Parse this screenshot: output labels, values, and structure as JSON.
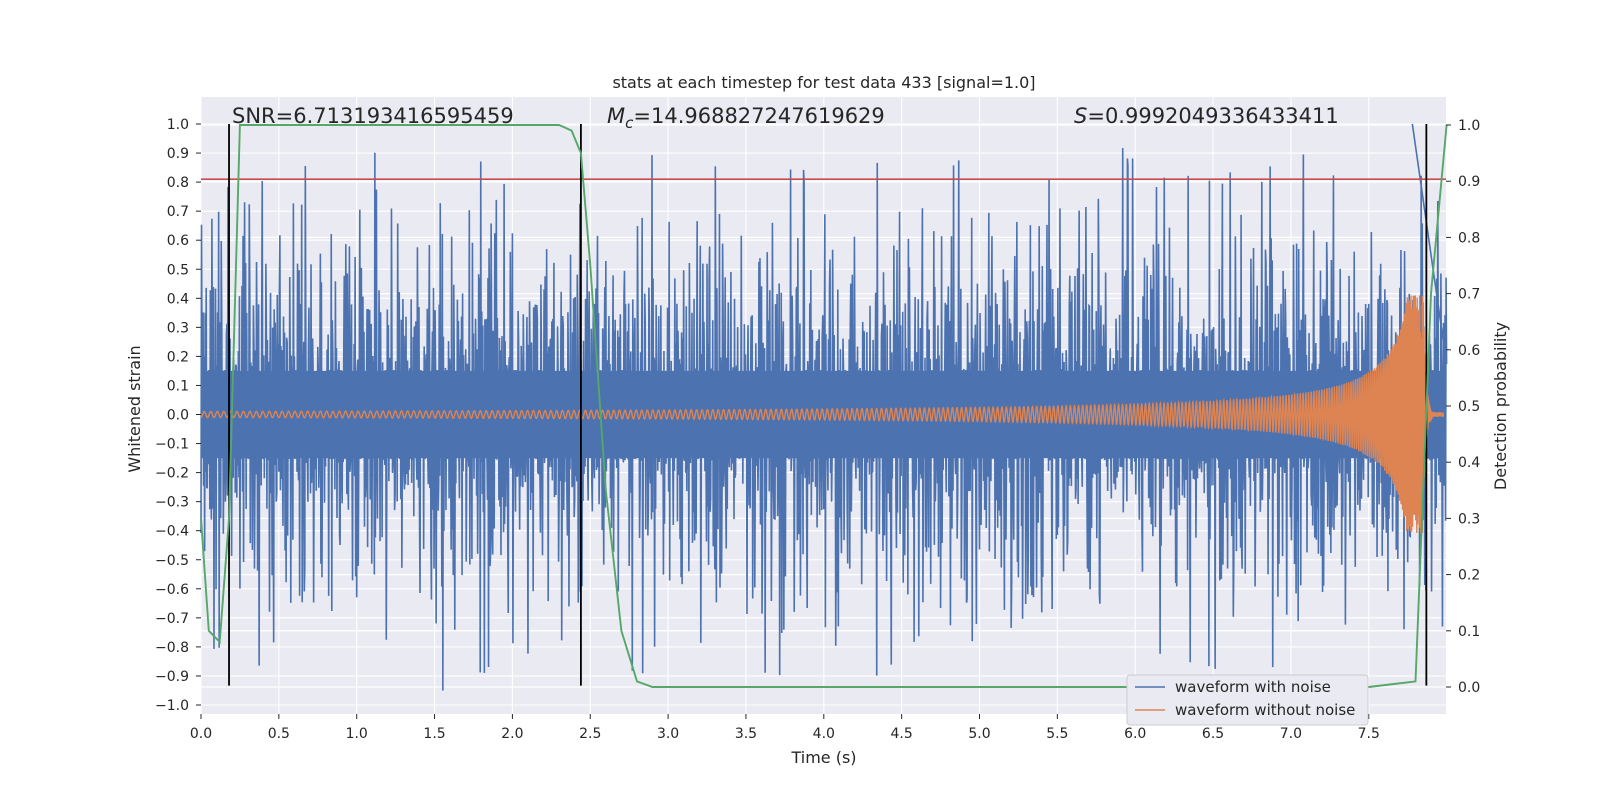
{
  "chart_data": {
    "type": "line",
    "title": "stats at each timestep for test data 433 [signal=1.0]",
    "xlabel": "Time (s)",
    "ylabel": "Whitened strain",
    "y2label": "Detection probability",
    "xlim": [
      0.0,
      8.0
    ],
    "ylim": [
      -1.05,
      1.05
    ],
    "y2lim": [
      -0.05,
      1.05
    ],
    "x_ticks": [
      0.0,
      0.5,
      1.0,
      1.5,
      2.0,
      2.5,
      3.0,
      3.5,
      4.0,
      4.5,
      5.0,
      5.5,
      6.0,
      6.5,
      7.0,
      7.5
    ],
    "x_tick_labels": [
      "0.0",
      "0.5",
      "1.0",
      "1.5",
      "2.0",
      "2.5",
      "3.0",
      "3.5",
      "4.0",
      "4.5",
      "5.0",
      "5.5",
      "6.0",
      "6.5",
      "7.0",
      "7.5"
    ],
    "y_ticks": [
      1.0,
      0.9,
      0.8,
      0.7,
      0.6,
      0.5,
      0.4,
      0.3,
      0.2,
      0.1,
      0.0,
      -0.1,
      -0.2,
      -0.3,
      -0.4,
      -0.5,
      -0.6,
      -0.7,
      -0.8,
      -0.9,
      -1.0
    ],
    "y_tick_labels": [
      "1.0",
      "0.9",
      "0.8",
      "0.7",
      "0.6",
      "0.5",
      "0.4",
      "0.3",
      "0.2",
      "0.1",
      "0.0",
      "−0.1",
      "−0.2",
      "−0.3",
      "−0.4",
      "−0.5",
      "−0.6",
      "−0.7",
      "−0.8",
      "−0.9",
      "−1.0"
    ],
    "y2_ticks": [
      1.0,
      0.9,
      0.8,
      0.7,
      0.6,
      0.5,
      0.4,
      0.3,
      0.2,
      0.1,
      0.0
    ],
    "y2_tick_labels": [
      "1.0",
      "0.9",
      "0.8",
      "0.7",
      "0.6",
      "0.5",
      "0.4",
      "0.3",
      "0.2",
      "0.1",
      "0.0"
    ],
    "annotations": [
      {
        "text": "SNR=6.713193416595459",
        "x": 0.2,
        "y": 1.02
      },
      {
        "text": "ℳc=14.968827247619629",
        "prefix": "M",
        "sub": "c",
        "rest": "=14.968827247619629",
        "x": 2.6,
        "y": 1.02
      },
      {
        "text": "S=0.9992049336433411",
        "prefix": "S",
        "rest": "=0.9992049336433411",
        "x": 5.6,
        "y": 1.02
      }
    ],
    "threshold": {
      "y": 0.81,
      "color": "#c44e52"
    },
    "vlines": [
      {
        "x": 0.18,
        "ymin": -0.93,
        "ymax": 1.0
      },
      {
        "x": 2.44,
        "ymin": -0.93,
        "ymax": 1.0
      },
      {
        "x": 7.87,
        "ymin": -0.93,
        "ymax": 1.0
      }
    ],
    "series": [
      {
        "name": "waveform with noise",
        "color": "#4c72b0",
        "noise_amplitude": 0.3,
        "peak_min": -0.95,
        "peak_max": 1.0
      },
      {
        "name": "waveform without noise",
        "color": "#dd8452",
        "chirp_start_amp": 0.01,
        "peak_amp": 0.41,
        "merger_time": 7.85
      },
      {
        "name": "detection probability",
        "color": "#55a868",
        "axis": "right",
        "x": [
          0.0,
          0.05,
          0.12,
          0.18,
          0.25,
          0.5,
          1.0,
          1.5,
          2.0,
          2.3,
          2.38,
          2.44,
          2.5,
          2.6,
          2.7,
          2.8,
          2.9,
          3.0,
          7.5,
          7.8,
          7.9,
          8.0
        ],
        "values": [
          0.3,
          0.1,
          0.08,
          0.3,
          1.0,
          1.0,
          1.0,
          1.0,
          1.0,
          1.0,
          0.99,
          0.95,
          0.75,
          0.35,
          0.1,
          0.01,
          0.0,
          0.0,
          0.0,
          0.01,
          0.7,
          1.0
        ]
      }
    ],
    "legend": {
      "placement": "lower-right",
      "entries": [
        "waveform with noise",
        "waveform without noise"
      ]
    }
  },
  "colors": {
    "plot_bg": "#eaeaf2",
    "grid": "#ffffff",
    "text": "#262626"
  }
}
